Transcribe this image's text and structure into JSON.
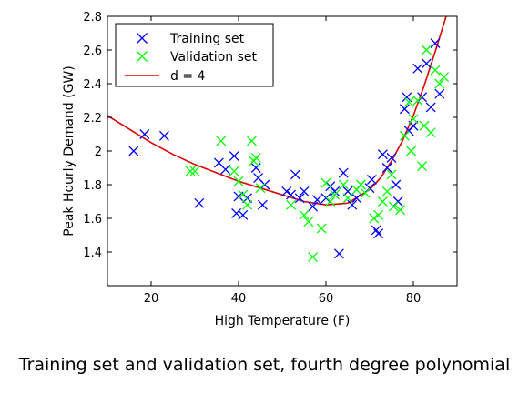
{
  "caption": "Training set and validation set, fourth degree polynomial",
  "chart_data": {
    "type": "scatter",
    "xlabel": "High Temperature (F)",
    "ylabel": "Peak Hourly Demand (GW)",
    "xlim": [
      10,
      90
    ],
    "ylim": [
      1.2,
      2.8
    ],
    "xticks": [
      20,
      40,
      60,
      80
    ],
    "yticks": [
      1.4,
      1.6,
      1.8,
      2.0,
      2.2,
      2.4,
      2.6,
      2.8
    ],
    "ytick_labels": [
      "1.4",
      "1.6",
      "1.8",
      "2",
      "2.2",
      "2.4",
      "2.6",
      "2.8"
    ],
    "legend_position": "top-left",
    "series": [
      {
        "name": "Training set",
        "marker": "x",
        "color": "#0000ff",
        "points": [
          [
            16,
            2.0
          ],
          [
            18.5,
            2.1
          ],
          [
            23,
            2.09
          ],
          [
            31,
            1.69
          ],
          [
            35.5,
            1.93
          ],
          [
            37,
            1.89
          ],
          [
            39,
            1.97
          ],
          [
            39.5,
            1.63
          ],
          [
            40,
            1.73
          ],
          [
            41,
            1.62
          ],
          [
            42,
            1.72
          ],
          [
            44,
            1.9
          ],
          [
            44.5,
            1.84
          ],
          [
            45.5,
            1.68
          ],
          [
            46,
            1.8
          ],
          [
            51,
            1.76
          ],
          [
            52,
            1.74
          ],
          [
            53,
            1.86
          ],
          [
            54,
            1.72
          ],
          [
            55,
            1.76
          ],
          [
            57,
            1.67
          ],
          [
            58,
            1.71
          ],
          [
            60,
            1.72
          ],
          [
            61,
            1.79
          ],
          [
            62,
            1.76
          ],
          [
            63,
            1.39
          ],
          [
            64,
            1.87
          ],
          [
            65,
            1.76
          ],
          [
            66,
            1.68
          ],
          [
            67,
            1.72
          ],
          [
            70,
            1.78
          ],
          [
            70.5,
            1.83
          ],
          [
            71.5,
            1.53
          ],
          [
            72,
            1.51
          ],
          [
            73,
            1.98
          ],
          [
            74,
            1.9
          ],
          [
            75,
            1.96
          ],
          [
            76,
            1.8
          ],
          [
            76.5,
            1.7
          ],
          [
            78,
            2.25
          ],
          [
            78.5,
            2.32
          ],
          [
            79,
            2.12
          ],
          [
            80,
            2.15
          ],
          [
            81,
            2.49
          ],
          [
            82,
            2.32
          ],
          [
            83,
            2.52
          ],
          [
            84,
            2.26
          ],
          [
            85,
            2.64
          ],
          [
            86,
            2.34
          ]
        ]
      },
      {
        "name": "Validation set",
        "marker": "x",
        "color": "#00ff00",
        "points": [
          [
            29,
            1.88
          ],
          [
            30,
            1.88
          ],
          [
            36,
            2.06
          ],
          [
            39,
            1.88
          ],
          [
            40,
            1.82
          ],
          [
            41,
            1.74
          ],
          [
            42,
            1.68
          ],
          [
            43,
            2.06
          ],
          [
            43.5,
            1.94
          ],
          [
            44,
            1.96
          ],
          [
            45,
            1.78
          ],
          [
            52,
            1.68
          ],
          [
            55,
            1.62
          ],
          [
            56,
            1.58
          ],
          [
            57,
            1.37
          ],
          [
            59,
            1.54
          ],
          [
            60,
            1.81
          ],
          [
            61,
            1.7
          ],
          [
            62,
            1.74
          ],
          [
            64,
            1.8
          ],
          [
            65,
            1.72
          ],
          [
            67,
            1.77
          ],
          [
            68,
            1.8
          ],
          [
            69,
            1.75
          ],
          [
            71,
            1.6
          ],
          [
            72,
            1.62
          ],
          [
            73,
            1.7
          ],
          [
            74,
            1.76
          ],
          [
            75,
            1.86
          ],
          [
            75.5,
            1.67
          ],
          [
            77,
            1.65
          ],
          [
            78,
            2.09
          ],
          [
            79,
            2.29
          ],
          [
            79.5,
            2.0
          ],
          [
            80,
            2.19
          ],
          [
            81,
            2.3
          ],
          [
            82,
            1.91
          ],
          [
            82.5,
            2.15
          ],
          [
            83,
            2.6
          ],
          [
            84,
            2.11
          ],
          [
            85,
            2.48
          ],
          [
            86,
            2.4
          ],
          [
            87,
            2.44
          ]
        ]
      },
      {
        "name": "d = 4",
        "type": "line",
        "color": "#dd0000",
        "x": [
          10,
          15,
          20,
          25,
          30,
          35,
          40,
          45,
          50,
          55,
          60,
          65,
          70,
          72.5,
          75,
          77.5,
          80,
          82.5,
          85,
          87.5,
          88.3
        ],
        "y": [
          2.21,
          2.13,
          2.05,
          1.98,
          1.92,
          1.87,
          1.82,
          1.78,
          1.74,
          1.7,
          1.68,
          1.69,
          1.77,
          1.84,
          1.94,
          2.06,
          2.21,
          2.39,
          2.59,
          2.8,
          2.82
        ]
      }
    ]
  }
}
